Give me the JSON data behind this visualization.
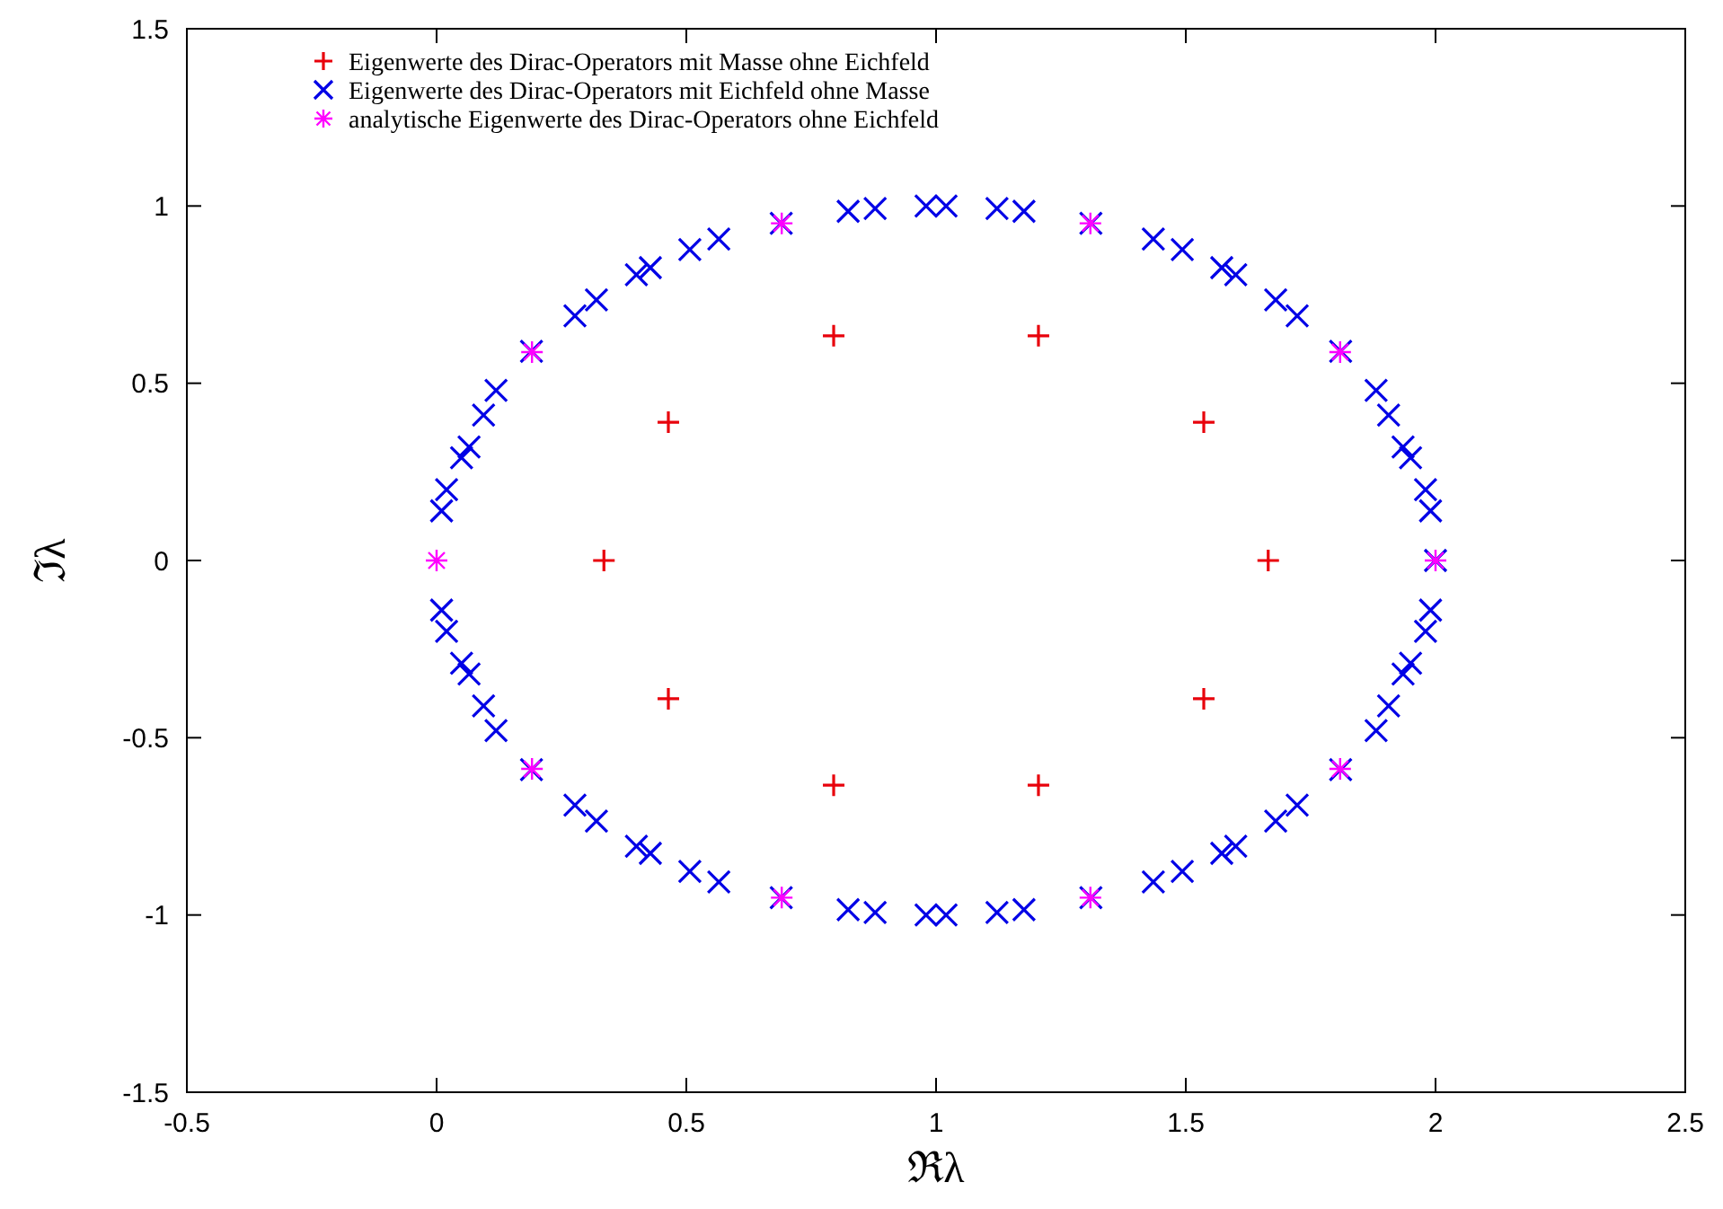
{
  "chart_data": {
    "type": "scatter",
    "xlabel": "ℜλ",
    "ylabel": "ℑλ",
    "xlim": [
      -0.5,
      2.5
    ],
    "ylim": [
      -1.5,
      1.5
    ],
    "xticks": [
      {
        "value": -0.5,
        "label": "-0.5"
      },
      0,
      0.5,
      1,
      1.5,
      2,
      2.5
    ],
    "yticks": [
      {
        "value": -1.5,
        "label": "-1.5"
      },
      {
        "value": -1,
        "label": "-1"
      },
      {
        "value": -0.5,
        "label": "-0.5"
      },
      0,
      0.5,
      1,
      1.5
    ],
    "grid": false,
    "legend": "top left",
    "series": [
      {
        "name": "Eigenwerte des Dirac-Operators mit Masse ohne Eichfeld",
        "color": "#e8000b",
        "marker": "cross",
        "x": [
          0.335,
          0.464,
          0.795,
          1.205,
          1.536,
          1.665,
          1.536,
          1.205,
          0.795,
          0.464
        ],
        "values": [
          0,
          0.39,
          0.634,
          0.634,
          0.39,
          0,
          -0.39,
          -0.634,
          -0.634,
          -0.39
        ]
      },
      {
        "name": "Eigenwerte des Dirac-Operators mit Eichfeld ohne Masse",
        "color": "#0000e6",
        "marker": "x",
        "x": [
          0.01,
          0.02,
          0.05,
          0.065,
          0.094,
          0.119,
          0.19,
          0.277,
          0.32,
          0.4,
          0.428,
          0.507,
          0.565,
          0.69,
          0.824,
          0.878,
          0.98,
          1.02,
          1.122,
          1.176,
          1.31,
          1.435,
          1.493,
          1.572,
          1.6,
          1.68,
          1.723,
          1.81,
          1.881,
          1.906,
          1.935,
          1.95,
          1.98,
          1.99,
          2,
          1.99,
          1.98,
          1.95,
          1.935,
          1.906,
          1.881,
          1.81,
          1.723,
          1.68,
          1.6,
          1.572,
          1.493,
          1.435,
          1.31,
          1.176,
          1.122,
          1.02,
          0.98,
          0.878,
          0.824,
          0.69,
          0.565,
          0.507,
          0.428,
          0.4,
          0.32,
          0.277,
          0.19,
          0.119,
          0.094,
          0.065,
          0.05,
          0.02,
          0.01
        ],
        "values": [
          0.14,
          0.2,
          0.29,
          0.32,
          0.41,
          0.48,
          0.59,
          0.69,
          0.735,
          0.806,
          0.826,
          0.877,
          0.907,
          0.951,
          0.985,
          0.993,
          1,
          1,
          0.993,
          0.985,
          0.951,
          0.907,
          0.877,
          0.826,
          0.806,
          0.735,
          0.69,
          0.59,
          0.48,
          0.41,
          0.32,
          0.29,
          0.2,
          0.14,
          0,
          -0.14,
          -0.2,
          -0.29,
          -0.32,
          -0.41,
          -0.48,
          -0.59,
          -0.69,
          -0.735,
          -0.806,
          -0.826,
          -0.877,
          -0.907,
          -0.951,
          -0.985,
          -0.993,
          -1,
          -1,
          -0.993,
          -0.985,
          -0.951,
          -0.907,
          -0.877,
          -0.826,
          -0.806,
          -0.735,
          -0.69,
          -0.59,
          -0.48,
          -0.41,
          -0.32,
          -0.29,
          -0.2,
          -0.14
        ]
      },
      {
        "name": "analytische Eigenwerte des Dirac-Operators ohne Eichfeld",
        "color": "#ff00ff",
        "x": [
          0,
          0.191,
          0.691,
          1.309,
          1.809,
          2,
          1.809,
          1.309,
          0.691,
          0.191
        ],
        "values": [
          0,
          0.588,
          0.951,
          0.951,
          0.588,
          0,
          -0.588,
          -0.951,
          -0.951,
          -0.588
        ]
      }
    ]
  }
}
